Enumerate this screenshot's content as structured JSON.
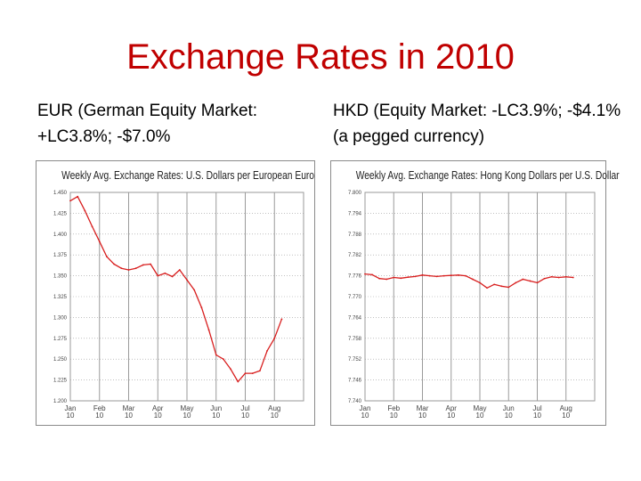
{
  "slide": {
    "title": "Exchange Rates in 2010",
    "left_caption": "EUR (German Equity Market: +LC3.8%; -$7.0%",
    "right_caption": "HKD (Equity Market: -LC3.9%; -$4.1% (a pegged currency)"
  },
  "colors": {
    "title": "#c00000",
    "line": "#d81e1e",
    "grid": "#9a9a9a"
  },
  "chart_data": [
    {
      "type": "line",
      "title": "Weekly Avg. Exchange Rates: U.S. Dollars per European Euro",
      "ylim": [
        1.2,
        1.45
      ],
      "yticks": [
        "1.450",
        "1.425",
        "1.400",
        "1.375",
        "1.350",
        "1.325",
        "1.300",
        "1.275",
        "1.250",
        "1.225",
        "1.200"
      ],
      "xticks": [
        [
          "Jan",
          "10"
        ],
        [
          "Feb",
          "10"
        ],
        [
          "Mar",
          "10"
        ],
        [
          "Apr",
          "10"
        ],
        [
          "May",
          "10"
        ],
        [
          "Jun",
          "10"
        ],
        [
          "Jul",
          "10"
        ],
        [
          "Aug",
          "10"
        ]
      ],
      "x": [
        0,
        0.25,
        0.5,
        0.75,
        1,
        1.25,
        1.5,
        1.75,
        2,
        2.25,
        2.5,
        2.75,
        3,
        3.25,
        3.5,
        3.75,
        4,
        4.25,
        4.5,
        4.75,
        5,
        5.25,
        5.5,
        5.75,
        6,
        6.25,
        6.5,
        6.75,
        7,
        7.25
      ],
      "series": [
        {
          "values": [
            1.44,
            1.445,
            1.428,
            1.409,
            1.391,
            1.373,
            1.364,
            1.359,
            1.357,
            1.359,
            1.363,
            1.364,
            1.35,
            1.353,
            1.349,
            1.357,
            1.345,
            1.333,
            1.312,
            1.285,
            1.255,
            1.25,
            1.238,
            1.223,
            1.233,
            1.233,
            1.236,
            1.26,
            1.275,
            1.298
          ]
        }
      ]
    },
    {
      "type": "line",
      "title": "Weekly Avg. Exchange Rates: Hong Kong Dollars per U.S. Dollar",
      "ylim": [
        7.74,
        7.8
      ],
      "yticks": [
        "7.800",
        "7.794",
        "7.788",
        "7.782",
        "7.776",
        "7.770",
        "7.764",
        "7.758",
        "7.752",
        "7.746",
        "7.740"
      ],
      "xticks": [
        [
          "Jan",
          "10"
        ],
        [
          "Feb",
          "10"
        ],
        [
          "Mar",
          "10"
        ],
        [
          "Apr",
          "10"
        ],
        [
          "May",
          "10"
        ],
        [
          "Jun",
          "10"
        ],
        [
          "Jul",
          "10"
        ],
        [
          "Aug",
          "10"
        ]
      ],
      "x": [
        0,
        0.25,
        0.5,
        0.75,
        1,
        1.25,
        1.5,
        1.75,
        2,
        2.25,
        2.5,
        2.75,
        3,
        3.25,
        3.5,
        3.75,
        4,
        4.25,
        4.5,
        4.75,
        5,
        5.25,
        5.5,
        5.75,
        6,
        6.25,
        6.5,
        6.75,
        7,
        7.25
      ],
      "series": [
        {
          "values": [
            7.7765,
            7.7763,
            7.7752,
            7.775,
            7.7755,
            7.7753,
            7.7756,
            7.7758,
            7.7762,
            7.776,
            7.7758,
            7.776,
            7.7761,
            7.7762,
            7.776,
            7.775,
            7.774,
            7.7725,
            7.7735,
            7.773,
            7.7727,
            7.774,
            7.775,
            7.7745,
            7.774,
            7.7752,
            7.7757,
            7.7755,
            7.7757,
            7.7755
          ]
        }
      ]
    }
  ]
}
